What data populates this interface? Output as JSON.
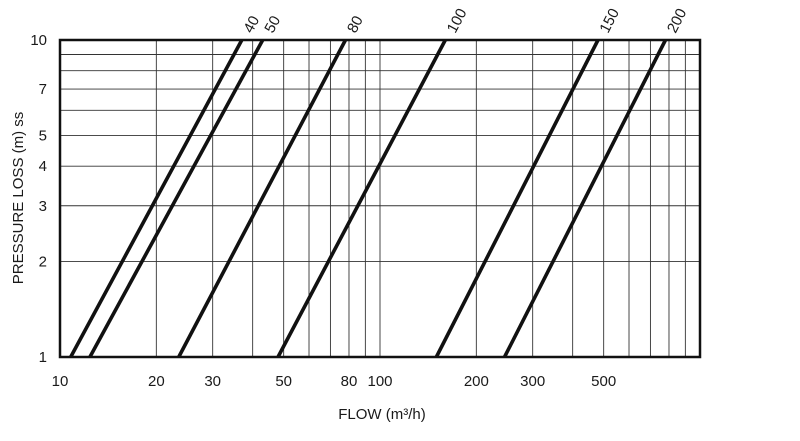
{
  "chart_data": {
    "type": "line",
    "title": "",
    "xlabel": "FLOW  (m³/h)",
    "ylabel": "PRESSURE LOSS (m) ss",
    "xscale": "log",
    "yscale": "log",
    "xlim": [
      10,
      1000
    ],
    "ylim": [
      1,
      10
    ],
    "grid": true,
    "legend": "none",
    "x_ticks": [
      {
        "value": 10,
        "label": "10"
      },
      {
        "value": 20,
        "label": "20"
      },
      {
        "value": 30,
        "label": "30"
      },
      {
        "value": 50,
        "label": "50"
      },
      {
        "value": 80,
        "label": "80"
      },
      {
        "value": 100,
        "label": "100"
      },
      {
        "value": 200,
        "label": "200"
      },
      {
        "value": 300,
        "label": "300"
      },
      {
        "value": 500,
        "label": "500"
      }
    ],
    "y_ticks": [
      {
        "value": 1,
        "label": "1"
      },
      {
        "value": 2,
        "label": "2"
      },
      {
        "value": 3,
        "label": "3"
      },
      {
        "value": 4,
        "label": "4"
      },
      {
        "value": 5,
        "label": "5"
      },
      {
        "value": 7,
        "label": "7"
      },
      {
        "value": 10,
        "label": "10"
      }
    ],
    "series": [
      {
        "name": "40",
        "points": [
          {
            "x": 10.8,
            "y": 1
          },
          {
            "x": 37,
            "y": 10
          }
        ]
      },
      {
        "name": "50",
        "points": [
          {
            "x": 12.4,
            "y": 1
          },
          {
            "x": 43,
            "y": 10
          }
        ]
      },
      {
        "name": "80",
        "points": [
          {
            "x": 23.5,
            "y": 1
          },
          {
            "x": 78,
            "y": 10
          }
        ]
      },
      {
        "name": "100",
        "points": [
          {
            "x": 48,
            "y": 1
          },
          {
            "x": 160,
            "y": 10
          }
        ]
      },
      {
        "name": "150",
        "points": [
          {
            "x": 150,
            "y": 1
          },
          {
            "x": 480,
            "y": 10
          }
        ]
      },
      {
        "name": "200",
        "points": [
          {
            "x": 245,
            "y": 1
          },
          {
            "x": 780,
            "y": 10
          }
        ]
      }
    ]
  }
}
